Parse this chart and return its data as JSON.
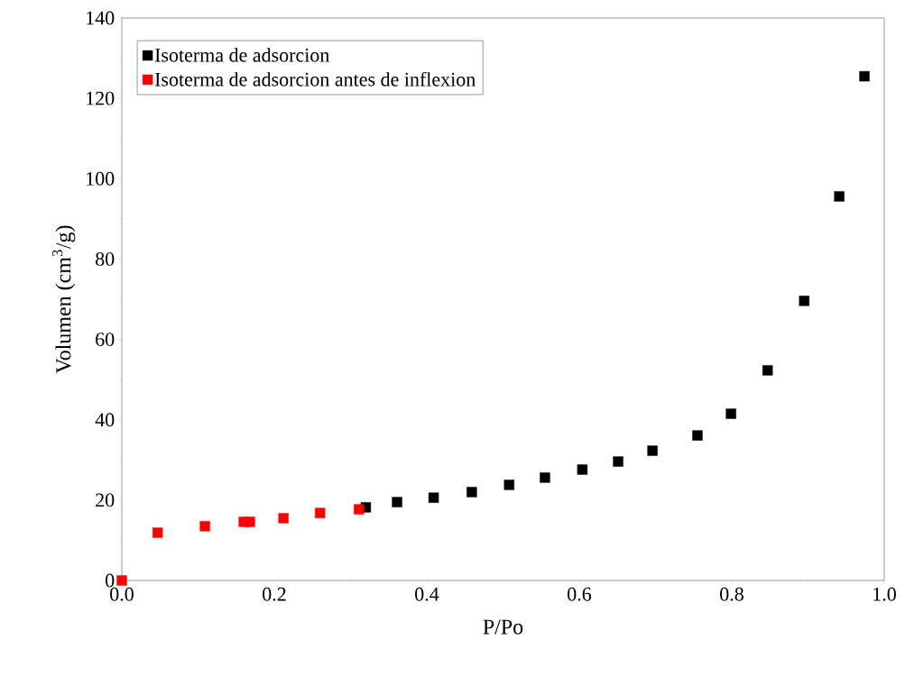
{
  "chart_data": {
    "type": "scatter",
    "xlabel": "P/Po",
    "ylabel": "Volumen (cm$^{3}$/g)",
    "xlim": [
      0,
      1
    ],
    "ylim": [
      0,
      140
    ],
    "xticks": [
      {
        "value": 0,
        "label": "0.0"
      },
      {
        "value": 0.2,
        "label": "0.2"
      },
      {
        "value": 0.4,
        "label": "0.4"
      },
      {
        "value": 0.6,
        "label": "0.6"
      },
      {
        "value": 0.8,
        "label": "0.8"
      },
      {
        "value": 1,
        "label": "1.0"
      }
    ],
    "yticks": [
      0,
      20,
      40,
      60,
      80,
      100,
      120,
      140
    ],
    "marker": "square",
    "legend": "top left",
    "grid": false,
    "series": [
      {
        "name": "Isoterma de adsorcion",
        "color": "#000000",
        "x": [
          0.32,
          0.361,
          0.409,
          0.459,
          0.508,
          0.555,
          0.604,
          0.651,
          0.696,
          0.755,
          0.799,
          0.847,
          0.895,
          0.941,
          0.974
        ],
        "values": [
          18.2,
          19.5,
          20.6,
          22.0,
          23.8,
          25.6,
          27.6,
          29.6,
          32.3,
          36.1,
          41.5,
          52.3,
          69.6,
          95.6,
          125.5
        ]
      },
      {
        "name": "Isoterma de adsorcion antes de inflexion",
        "color": "#ff0000",
        "x": [
          0,
          0.047,
          0.109,
          0.16,
          0.168,
          0.212,
          0.26,
          0.311
        ],
        "values": [
          0,
          11.9,
          13.5,
          14.6,
          14.6,
          15.5,
          16.8,
          17.7
        ]
      }
    ]
  }
}
